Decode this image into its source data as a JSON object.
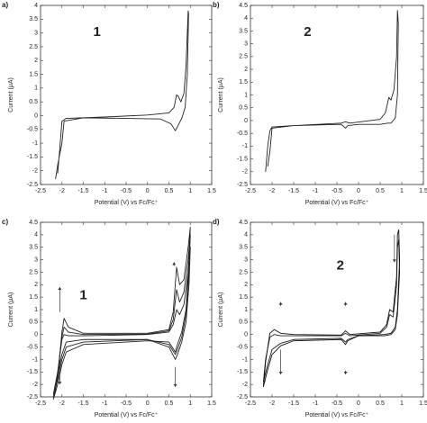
{
  "chart_data": [
    {
      "type": "line",
      "label": "a)",
      "annotation": "1",
      "x_label": "Potential (V) vs Fc/Fc⁺",
      "y_label": "Current (μA)",
      "xlim": [
        -2.5,
        1.5
      ],
      "xticks": [
        -2.5,
        -2,
        -1.5,
        -1,
        -0.5,
        0,
        0.5,
        1,
        1.5
      ],
      "ylim": [
        -2.5,
        4
      ],
      "yticks": [
        -2.5,
        -2,
        -1.5,
        -1,
        -0.5,
        0,
        0.5,
        1,
        1.5,
        2,
        2.5,
        3,
        3.5,
        4
      ],
      "series": [
        {
          "color": "#222",
          "x": [
            -2.1,
            -2.05,
            -2.0,
            -1.9,
            -1.0,
            0,
            0.5,
            0.62,
            0.68,
            0.72,
            0.78,
            0.85,
            0.9,
            0.93,
            0.95,
            0.96,
            0.93,
            0.88,
            0.8,
            0.7,
            0.65,
            0.55,
            0.3,
            -0.5,
            -1.5,
            -1.95,
            -2.0,
            -2.1,
            -2.15
          ],
          "values": [
            -2.1,
            -1.2,
            -0.2,
            -0.1,
            -0.05,
            0.02,
            0.1,
            0.3,
            0.75,
            0.7,
            0.5,
            0.8,
            1.8,
            3,
            3.8,
            3.7,
            1.5,
            0.3,
            -0.1,
            -0.4,
            -0.55,
            -0.3,
            -0.12,
            -0.1,
            -0.08,
            -0.2,
            -1.0,
            -1.8,
            -2.3
          ]
        }
      ]
    },
    {
      "type": "line",
      "label": "b)",
      "annotation": "2",
      "x_label": "Potential (V) vs Fc/Fc⁺",
      "y_label": "Current (μA)",
      "xlim": [
        -2.5,
        1.5
      ],
      "xticks": [
        -2.5,
        -2,
        -1.5,
        -1,
        -0.5,
        0,
        0.5,
        1,
        1.5
      ],
      "ylim": [
        -2.5,
        4.5
      ],
      "yticks": [
        -2.5,
        -2,
        -1.5,
        -1,
        -0.5,
        0,
        0.5,
        1,
        1.5,
        2,
        2.5,
        3,
        3.5,
        4,
        4.5
      ],
      "series": [
        {
          "color": "#222",
          "x": [
            -2.15,
            -2.1,
            -2.05,
            -2.0,
            -1.5,
            -0.4,
            -0.3,
            -0.2,
            0.5,
            0.62,
            0.7,
            0.75,
            0.82,
            0.88,
            0.9,
            0.92,
            0.9,
            0.85,
            0.75,
            0.68,
            0.5,
            0,
            -0.25,
            -0.3,
            -0.4,
            -1.5,
            -2.0,
            -2.05,
            -2.1
          ],
          "values": [
            -2.0,
            -1.0,
            -0.4,
            -0.25,
            -0.2,
            -0.1,
            -0.05,
            -0.1,
            0.05,
            0.3,
            0.9,
            0.8,
            1.2,
            2.5,
            4.3,
            3.8,
            1.0,
            0.1,
            -0.1,
            -0.1,
            -0.15,
            -0.15,
            -0.2,
            -0.3,
            -0.15,
            -0.2,
            -0.3,
            -1.2,
            -1.8
          ]
        }
      ]
    },
    {
      "type": "line",
      "label": "c)",
      "annotation": "1",
      "x_label": "Potential (V) vs Fc/Fc⁺",
      "y_label": "Current (μA)",
      "xlim": [
        -2.5,
        1.5
      ],
      "xticks": [
        -2.5,
        -2,
        -1.5,
        -1,
        -0.5,
        0,
        0.5,
        1,
        1.5
      ],
      "ylim": [
        -2.5,
        4.5
      ],
      "yticks": [
        -2.5,
        -2,
        -1.5,
        -1,
        -0.5,
        0,
        0.5,
        1,
        1.5,
        2,
        2.5,
        3,
        3.5,
        4,
        4.5
      ],
      "series": [
        {
          "color": "#222",
          "x": [
            -2.2,
            -2.1,
            -2.0,
            -1.95,
            -1.85,
            -1.5,
            0,
            0.5,
            0.6,
            0.68,
            0.75,
            0.85,
            0.95,
            1.0,
            0.97,
            0.9,
            0.8,
            0.7,
            0.65,
            0.5,
            0,
            -1.5,
            -1.9,
            -2.0,
            -2.1,
            -2.2
          ],
          "values": [
            -2.4,
            -1.5,
            -0.2,
            0.0,
            -0.05,
            -0.05,
            0.0,
            0.1,
            0.4,
            1.0,
            0.8,
            1.2,
            2.5,
            3.5,
            2.0,
            0.5,
            -0.3,
            -0.8,
            -1.0,
            -0.5,
            -0.2,
            -0.2,
            -0.3,
            -0.8,
            -1.6,
            -2.4
          ]
        },
        {
          "color": "#222",
          "x": [
            -2.2,
            -2.1,
            -2.0,
            -1.95,
            -1.85,
            -1.5,
            0,
            0.5,
            0.6,
            0.68,
            0.75,
            0.85,
            0.95,
            1.0,
            0.97,
            0.9,
            0.8,
            0.7,
            0.65,
            0.5,
            0,
            -1.5,
            -1.9,
            -2.0,
            -2.1,
            -2.2
          ],
          "values": [
            -2.5,
            -1.6,
            -0.1,
            0.3,
            0.1,
            0.0,
            0.02,
            0.15,
            0.6,
            1.8,
            1.3,
            1.7,
            3.0,
            4.0,
            2.5,
            0.8,
            -0.1,
            -0.6,
            -0.8,
            -0.4,
            -0.2,
            -0.3,
            -0.5,
            -1.0,
            -1.8,
            -2.5
          ]
        },
        {
          "color": "#222",
          "x": [
            -2.2,
            -2.1,
            -2.0,
            -1.95,
            -1.85,
            -1.5,
            0,
            0.5,
            0.6,
            0.68,
            0.75,
            0.85,
            0.95,
            1.0,
            0.97,
            0.9,
            0.8,
            0.7,
            0.65,
            0.5,
            0,
            -1.5,
            -1.9,
            -2.0,
            -2.1,
            -2.2
          ],
          "values": [
            -2.6,
            -1.7,
            0.1,
            0.65,
            0.3,
            0.05,
            0.05,
            0.2,
            0.9,
            2.7,
            2.0,
            2.2,
            3.5,
            4.3,
            3.0,
            1.0,
            0.1,
            -0.4,
            -0.7,
            -0.3,
            -0.25,
            -0.4,
            -0.7,
            -1.2,
            -2.0,
            -2.6
          ]
        }
      ]
    },
    {
      "type": "line",
      "label": "d)",
      "annotation": "2",
      "x_label": "Potential (V) vs Fc/Fc⁺",
      "y_label": "Current (μA)",
      "xlim": [
        -2.5,
        1.5
      ],
      "xticks": [
        -2.5,
        -2,
        -1.5,
        -1,
        -0.5,
        0,
        0.5,
        1,
        1.5
      ],
      "ylim": [
        -2.5,
        4.5
      ],
      "yticks": [
        -2.5,
        -2,
        -1.5,
        -1,
        -0.5,
        0,
        0.5,
        1,
        1.5,
        2,
        2.5,
        3,
        3.5,
        4,
        4.5
      ],
      "series": [
        {
          "color": "#222",
          "x": [
            -2.2,
            -2.15,
            -2.05,
            -1.95,
            -1.8,
            -1.5,
            -0.4,
            -0.3,
            -0.2,
            0.5,
            0.65,
            0.72,
            0.8,
            0.85,
            0.88,
            0.9,
            0.93,
            0.95,
            0.9,
            0.85,
            0.75,
            0.6,
            0,
            -0.25,
            -0.3,
            -0.4,
            -1.5,
            -1.8,
            -2.0,
            -2.1,
            -2.2
          ],
          "values": [
            -1.9,
            -1.0,
            -0.1,
            0.0,
            -0.05,
            -0.05,
            -0.05,
            0.05,
            -0.05,
            0.05,
            0.3,
            0.8,
            0.7,
            1.5,
            2.0,
            3.5,
            3.8,
            2.5,
            0.8,
            0.2,
            0.0,
            -0.05,
            -0.05,
            -0.2,
            -0.3,
            -0.15,
            -0.2,
            -0.35,
            -0.6,
            -1.2,
            -1.9
          ]
        },
        {
          "color": "#111",
          "x": [
            -2.2,
            -2.15,
            -2.05,
            -1.95,
            -1.8,
            -1.5,
            -0.4,
            -0.3,
            -0.2,
            0.5,
            0.65,
            0.72,
            0.8,
            0.85,
            0.88,
            0.9,
            0.93,
            0.95,
            0.9,
            0.85,
            0.75,
            0.6,
            0,
            -0.25,
            -0.3,
            -0.4,
            -1.5,
            -1.8,
            -2.0,
            -2.1,
            -2.2
          ],
          "values": [
            -2.1,
            -1.1,
            0.05,
            0.2,
            0.05,
            0.0,
            -0.02,
            0.15,
            0.0,
            0.1,
            0.4,
            1.0,
            0.9,
            1.8,
            2.3,
            4.0,
            4.2,
            3.0,
            1.0,
            0.3,
            0.05,
            0.0,
            -0.05,
            -0.25,
            -0.4,
            -0.2,
            -0.25,
            -0.45,
            -0.8,
            -1.4,
            -2.1
          ]
        }
      ]
    }
  ]
}
